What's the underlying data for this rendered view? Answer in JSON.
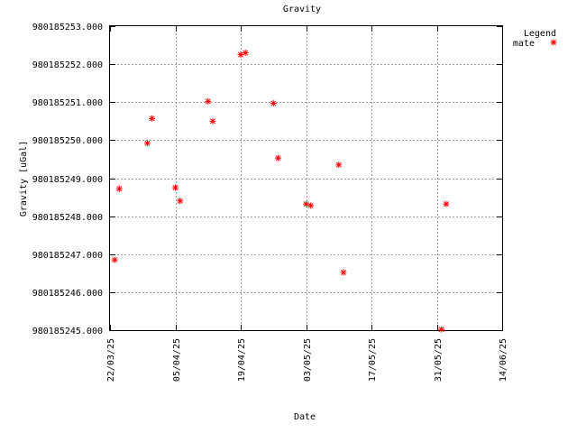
{
  "chart_data": {
    "type": "scatter",
    "title": "Gravity",
    "xlabel": "Date",
    "ylabel": "Gravity [uGal]",
    "legend_title": "Legend",
    "legend_position": "top-right",
    "grid": true,
    "xlim": [
      "2025-03-22",
      "2025-06-14"
    ],
    "ylim": [
      980185245.0,
      980185253.0
    ],
    "xticks": [
      "2025-03-22",
      "2025-04-05",
      "2025-04-19",
      "2025-05-03",
      "2025-05-17",
      "2025-05-31",
      "2025-06-14"
    ],
    "xtick_labels": [
      "22/03/25",
      "05/04/25",
      "19/04/25",
      "03/05/25",
      "17/05/25",
      "31/05/25",
      "14/06/25"
    ],
    "yticks": [
      980185245.0,
      980185246.0,
      980185247.0,
      980185248.0,
      980185249.0,
      980185250.0,
      980185251.0,
      980185252.0,
      980185253.0
    ],
    "ytick_labels": [
      "980185245.000",
      "980185246.000",
      "980185247.000",
      "980185248.000",
      "980185249.000",
      "980185250.000",
      "980185251.000",
      "980185252.000",
      "980185253.000"
    ],
    "series": [
      {
        "name": "mate",
        "color": "#ff0000",
        "marker": "asterisk",
        "points": [
          {
            "x": "2025-03-23",
            "y": 980185246.85
          },
          {
            "x": "2025-03-24",
            "y": 980185248.72
          },
          {
            "x": "2025-03-30",
            "y": 980185249.92
          },
          {
            "x": "2025-03-31",
            "y": 980185250.57
          },
          {
            "x": "2025-04-05",
            "y": 980185248.75
          },
          {
            "x": "2025-04-06",
            "y": 980185248.4
          },
          {
            "x": "2025-04-12",
            "y": 980185251.02
          },
          {
            "x": "2025-04-13",
            "y": 980185250.5
          },
          {
            "x": "2025-04-19",
            "y": 980185252.25
          },
          {
            "x": "2025-04-20",
            "y": 980185252.3
          },
          {
            "x": "2025-04-26",
            "y": 980185250.97
          },
          {
            "x": "2025-04-27",
            "y": 980185249.53
          },
          {
            "x": "2025-05-03",
            "y": 980185248.32
          },
          {
            "x": "2025-05-04",
            "y": 980185248.28
          },
          {
            "x": "2025-05-10",
            "y": 980185249.35
          },
          {
            "x": "2025-05-11",
            "y": 980185246.52
          },
          {
            "x": "2025-06-01",
            "y": 980185245.02
          },
          {
            "x": "2025-06-02",
            "y": 980185248.32
          }
        ]
      }
    ]
  }
}
